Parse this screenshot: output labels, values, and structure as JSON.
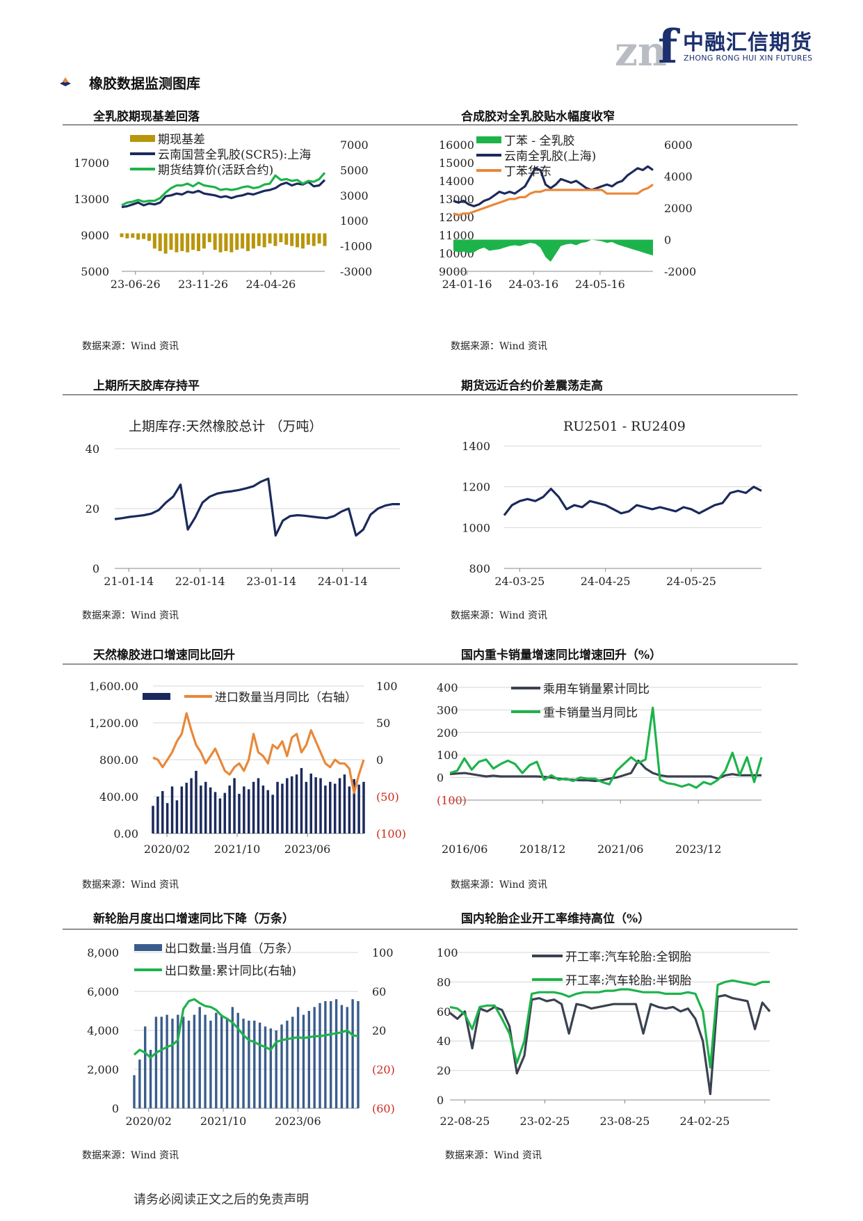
{
  "header": {
    "logo_mark": "znf",
    "company_name": "中融汇信期货",
    "company_name_en": "ZHONG RONG HUI XIN FUTURES",
    "section_title": "橡胶数据监测图库"
  },
  "footer": {
    "disclaimer": "请务必阅读正文之后的免责声明"
  },
  "colors": {
    "navy": "#1b2a5c",
    "green": "#1db34b",
    "gold": "#b8960c",
    "orange": "#e8883a",
    "gray_dark": "#3a4150",
    "steel": "#3a5d8c",
    "red_neg": "#cc2a1e"
  },
  "charts": [
    {
      "title": "全乳胶期现基差回落",
      "source": "数据来源：Wind 资讯"
    },
    {
      "title": "合成胶对全乳胶贴水幅度收窄",
      "source": "数据来源：Wind 资讯"
    },
    {
      "title": "上期所天胶库存持平",
      "source": "数据来源：Wind 资讯"
    },
    {
      "title": "期货远近合约价差震荡走高",
      "source": "数据来源：Wind 资讯"
    },
    {
      "title": "天然橡胶进口增速同比回升",
      "source": "数据来源：Wind 资讯"
    },
    {
      "title": "国内重卡销量增速同比增速回升（%）",
      "source": "数据来源：Wind 资讯"
    },
    {
      "title": "新轮胎月度出口增速同比下降（万条）",
      "source": "数据来源：Wind 资讯"
    },
    {
      "title": "国内轮胎企业开工率维持高位（%）",
      "source": "数据来源：Wind 资讯"
    }
  ],
  "chart_data": [
    {
      "type": "line",
      "x_ticks": [
        "23-06-26",
        "23-11-26",
        "24-04-26"
      ],
      "y_left": {
        "ticks": [
          "5000",
          "9000",
          "13000",
          "17000"
        ],
        "ylim": [
          5000,
          19000
        ]
      },
      "y_right": {
        "ticks": [
          "-3000",
          "-1000",
          "1000",
          "3000",
          "5000",
          "7000"
        ],
        "ylim": [
          -3000,
          7000
        ]
      },
      "series": [
        {
          "name": "期现基差",
          "kind": "bar",
          "axis": "right",
          "color": "#b8960c",
          "values": [
            -300,
            -400,
            -350,
            -500,
            -450,
            -600,
            -1200,
            -1400,
            -1600,
            -1300,
            -1500,
            -1400,
            -1500,
            -1300,
            -1400,
            -1200,
            -700,
            -1300,
            -1500,
            -1400,
            -1500,
            -1300,
            -1200,
            -1400,
            -1200,
            -1000,
            -1100,
            -800,
            -1000,
            -700,
            -900,
            -1000,
            -1100,
            -1200,
            -900,
            -1000,
            -800,
            -1000
          ]
        },
        {
          "name": "云南国营全乳胶(SCR5):上海",
          "axis": "left",
          "color": "#1b2a5c",
          "values": [
            12100,
            12200,
            12400,
            12600,
            12300,
            12500,
            12400,
            12600,
            13300,
            13400,
            13600,
            13500,
            13800,
            13700,
            13900,
            13600,
            13500,
            13400,
            13200,
            13300,
            13100,
            13300,
            13400,
            13600,
            13500,
            13700,
            13900,
            14000,
            14200,
            14600,
            14800,
            14500,
            14700,
            14600,
            14900,
            14400,
            14500,
            15100
          ]
        },
        {
          "name": "期货结算价(活跃合约)",
          "axis": "left",
          "color": "#1db34b",
          "values": [
            12300,
            12600,
            12700,
            12900,
            12700,
            12800,
            12800,
            13100,
            13700,
            14200,
            14500,
            14500,
            14700,
            14400,
            14800,
            14500,
            14400,
            14300,
            14000,
            14100,
            14000,
            14100,
            14300,
            14400,
            14200,
            14300,
            14600,
            14700,
            15600,
            15100,
            15200,
            15000,
            15100,
            14700,
            15000,
            14900,
            15200,
            15900
          ]
        }
      ]
    },
    {
      "type": "line",
      "x_ticks": [
        "24-01-16",
        "24-03-16",
        "24-05-16"
      ],
      "y_left": {
        "ticks": [
          "9000",
          "10000",
          "11000",
          "12000",
          "13000",
          "14000",
          "15000",
          "16000"
        ],
        "ylim": [
          9000,
          16000
        ]
      },
      "y_right": {
        "ticks": [
          "-2000",
          "0",
          "2000",
          "4000",
          "6000"
        ],
        "ylim": [
          -2000,
          6000
        ]
      },
      "series": [
        {
          "name": "丁苯 - 全乳胶",
          "kind": "area",
          "axis": "right",
          "color": "#1db34b",
          "values": [
            -700,
            -800,
            -750,
            -850,
            -800,
            -600,
            -500,
            -700,
            -650,
            -600,
            -500,
            -400,
            -350,
            -400,
            -300,
            -200,
            -250,
            -500,
            -1100,
            -1400,
            -900,
            -400,
            -300,
            -250,
            -350,
            -200,
            -150,
            0,
            -50,
            -100,
            -200,
            -150,
            -300,
            -400,
            -500,
            -600,
            -700,
            -800,
            -900,
            -1000
          ]
        },
        {
          "name": "云南全乳胶(上海)",
          "axis": "left",
          "color": "#1b2a5c",
          "values": [
            12900,
            12800,
            12900,
            12700,
            12600,
            12700,
            12900,
            13000,
            13200,
            13400,
            13300,
            13400,
            13300,
            13500,
            13700,
            14200,
            14700,
            14600,
            13800,
            13600,
            13800,
            14100,
            14000,
            13900,
            14000,
            13800,
            13600,
            13500,
            13600,
            13700,
            13800,
            13700,
            13900,
            14000,
            14300,
            14500,
            14700,
            14600,
            14800,
            14600
          ]
        },
        {
          "name": "丁苯华东",
          "axis": "left",
          "color": "#e8883a",
          "values": [
            12200,
            12100,
            12200,
            12200,
            12300,
            12400,
            12500,
            12600,
            12700,
            12800,
            12900,
            13000,
            13000,
            13100,
            13100,
            13300,
            13400,
            13400,
            13500,
            13500,
            13500,
            13500,
            13500,
            13500,
            13500,
            13500,
            13500,
            13500,
            13500,
            13500,
            13300,
            13300,
            13300,
            13300,
            13300,
            13300,
            13300,
            13500,
            13600,
            13800
          ]
        }
      ]
    },
    {
      "type": "line",
      "title": "上期库存:天然橡胶总计 （万吨）",
      "x_ticks": [
        "21-01-14",
        "22-01-14",
        "23-01-14",
        "24-01-14"
      ],
      "y_left": {
        "ticks": [
          "0",
          "20",
          "40"
        ],
        "ylim": [
          0,
          40
        ]
      },
      "series": [
        {
          "name": "上期库存:天然橡胶总计",
          "axis": "left",
          "color": "#1b2a5c",
          "values": [
            16.5,
            16.8,
            17.2,
            17.5,
            17.8,
            18.3,
            19.5,
            22,
            24,
            28,
            13,
            17,
            22,
            24,
            25,
            25.5,
            25.8,
            26.2,
            26.8,
            27.5,
            29,
            30,
            11,
            16,
            17.5,
            17.8,
            17.6,
            17.3,
            17,
            16.8,
            17.5,
            19,
            20,
            11,
            13,
            18,
            20,
            21,
            21.5,
            21.5
          ]
        }
      ]
    },
    {
      "type": "line",
      "title": "RU2501 - RU2409",
      "x_ticks": [
        "24-03-25",
        "24-04-25",
        "24-05-25"
      ],
      "y_left": {
        "ticks": [
          "800",
          "1000",
          "1200",
          "1400"
        ],
        "ylim": [
          800,
          1400
        ]
      },
      "series": [
        {
          "name": "RU2501 - RU2409",
          "axis": "left",
          "color": "#1b2a5c",
          "values": [
            1060,
            1110,
            1130,
            1140,
            1130,
            1150,
            1190,
            1150,
            1090,
            1110,
            1100,
            1130,
            1120,
            1110,
            1090,
            1070,
            1080,
            1110,
            1100,
            1090,
            1100,
            1090,
            1080,
            1100,
            1090,
            1070,
            1090,
            1110,
            1120,
            1170,
            1180,
            1170,
            1200,
            1180
          ]
        }
      ]
    },
    {
      "type": "bar",
      "x_ticks": [
        "2020/02",
        "2021/10",
        "2023/06"
      ],
      "y_left": {
        "ticks": [
          "0.00",
          "400.00",
          "800.00",
          "1,200.00",
          "1,600.00"
        ],
        "ylim": [
          0,
          1600
        ]
      },
      "y_right": {
        "ticks": [
          "(100)",
          "(50)",
          "0",
          "50",
          "100"
        ],
        "ylim": [
          -100,
          100
        ]
      },
      "series": [
        {
          "name": "",
          "kind": "bar",
          "axis": "left",
          "color": "#1b2a5c",
          "values": [
            300,
            400,
            460,
            330,
            510,
            360,
            510,
            550,
            600,
            680,
            520,
            560,
            500,
            450,
            380,
            440,
            520,
            600,
            430,
            510,
            480,
            560,
            600,
            520,
            470,
            420,
            560,
            540,
            600,
            620,
            640,
            710,
            560,
            650,
            610,
            600,
            520,
            560,
            540,
            600,
            640,
            510,
            590,
            530,
            560
          ]
        },
        {
          "name": "进口数量当月同比（右轴）",
          "axis": "right",
          "color": "#e8883a",
          "values": [
            3,
            0,
            -10,
            0,
            10,
            25,
            35,
            63,
            40,
            20,
            10,
            -5,
            5,
            15,
            0,
            -15,
            -20,
            -10,
            -5,
            -15,
            0,
            35,
            10,
            5,
            -5,
            20,
            15,
            25,
            5,
            30,
            35,
            10,
            20,
            40,
            25,
            10,
            -5,
            -10,
            0,
            -5,
            -5,
            -12,
            -45,
            -20,
            0
          ]
        }
      ]
    },
    {
      "type": "line",
      "x_ticks": [
        "2016/06",
        "2018/12",
        "2021/06",
        "2023/12"
      ],
      "y_left": {
        "ticks": [
          "(100)",
          "0",
          "100",
          "200",
          "300",
          "400"
        ],
        "ylim": [
          -100,
          400
        ]
      },
      "series": [
        {
          "name": "乘用车销量累计同比",
          "axis": "left",
          "color": "#3a4150",
          "values": [
            15,
            18,
            20,
            15,
            10,
            5,
            8,
            5,
            5,
            5,
            5,
            5,
            5,
            3,
            0,
            -5,
            -8,
            -10,
            -12,
            -12,
            -15,
            -12,
            -5,
            0,
            10,
            20,
            75,
            40,
            20,
            10,
            5,
            5,
            5,
            5,
            5,
            5,
            5,
            -5,
            10,
            15,
            10,
            10,
            10,
            10
          ]
        },
        {
          "name": "重卡销量当月同比",
          "axis": "left",
          "color": "#1db34b",
          "values": [
            20,
            30,
            85,
            35,
            70,
            80,
            40,
            60,
            75,
            60,
            20,
            55,
            70,
            -10,
            10,
            -10,
            -5,
            -15,
            0,
            -5,
            -5,
            -20,
            -30,
            30,
            60,
            90,
            65,
            80,
            310,
            -10,
            -25,
            -30,
            -40,
            -30,
            -45,
            -20,
            -30,
            -10,
            30,
            110,
            10,
            90,
            -20,
            90
          ]
        }
      ]
    },
    {
      "type": "bar",
      "x_ticks": [
        "2020/02",
        "2021/10",
        "2023/06"
      ],
      "y_left": {
        "ticks": [
          "0",
          "2,000",
          "4,000",
          "6,000",
          "8,000"
        ],
        "ylim": [
          0,
          8000
        ]
      },
      "y_right": {
        "ticks": [
          "(60)",
          "(20)",
          "20",
          "60",
          "100"
        ],
        "ylim": [
          -60,
          100
        ]
      },
      "series": [
        {
          "name": "出口数量:当月值（万条）",
          "kind": "bar",
          "axis": "left",
          "color": "#3a5d8c",
          "values": [
            1700,
            2500,
            4200,
            3000,
            4700,
            4700,
            4800,
            4600,
            4800,
            4700,
            4500,
            4800,
            5200,
            4800,
            4500,
            4900,
            4800,
            4600,
            5200,
            4900,
            4600,
            4500,
            4500,
            4400,
            4200,
            4100,
            4000,
            4300,
            4500,
            4700,
            5200,
            4800,
            5000,
            5200,
            5400,
            5500,
            5500,
            5600,
            5300,
            5200,
            5600,
            5500
          ]
        },
        {
          "name": "出口数量:累计同比(右轴)",
          "axis": "right",
          "color": "#1db34b",
          "values": [
            -5,
            0,
            -3,
            -8,
            -3,
            0,
            3,
            5,
            10,
            42,
            50,
            52,
            48,
            45,
            44,
            41,
            35,
            32,
            28,
            22,
            15,
            10,
            8,
            5,
            3,
            0,
            8,
            10,
            11,
            12,
            13,
            12,
            13,
            14,
            14,
            15,
            16,
            17,
            18,
            20,
            15,
            14
          ]
        }
      ]
    },
    {
      "type": "line",
      "x_ticks": [
        "22-08-25",
        "23-02-25",
        "23-08-25",
        "24-02-25"
      ],
      "y_left": {
        "ticks": [
          "0",
          "20",
          "40",
          "60",
          "80",
          "100"
        ],
        "ylim": [
          0,
          100
        ]
      },
      "series": [
        {
          "name": "开工率:汽车轮胎:全钢胎",
          "axis": "left",
          "color": "#3a4150",
          "values": [
            59,
            55,
            60,
            35,
            62,
            60,
            63,
            61,
            50,
            18,
            30,
            68,
            69,
            67,
            68,
            65,
            45,
            65,
            64,
            62,
            63,
            64,
            65,
            65,
            65,
            65,
            45,
            65,
            63,
            62,
            63,
            60,
            62,
            55,
            40,
            4,
            70,
            71,
            69,
            68,
            67,
            48,
            66,
            60
          ]
        },
        {
          "name": "开工率:汽车轮胎:半钢胎",
          "axis": "left",
          "color": "#1db34b",
          "values": [
            63,
            62,
            58,
            48,
            63,
            64,
            64,
            55,
            45,
            25,
            40,
            72,
            73,
            73,
            73,
            72,
            70,
            72,
            73,
            73,
            73,
            74,
            74,
            75,
            75,
            74,
            73,
            73,
            73,
            72,
            72,
            72,
            73,
            72,
            60,
            22,
            78,
            80,
            81,
            80,
            79,
            78,
            80,
            80
          ]
        }
      ]
    }
  ]
}
